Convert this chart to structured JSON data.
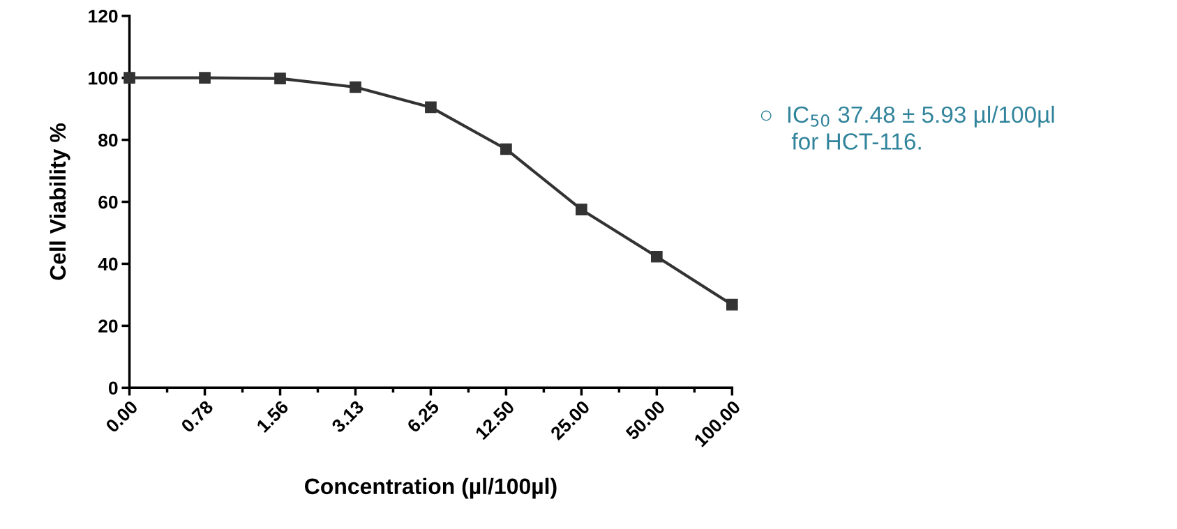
{
  "chart_data": {
    "type": "line",
    "xlabel": "Concentration (µl/100µl)",
    "ylabel": "Cell Viability %",
    "categories": [
      "0.00",
      "0.78",
      "1.56",
      "3.13",
      "6.25",
      "12.50",
      "25.00",
      "50.00",
      "100.00"
    ],
    "series": [
      {
        "color": "#333333",
        "values": [
          100,
          100,
          99.8,
          97,
          90.5,
          77,
          57.5,
          42.3,
          26.8
        ]
      }
    ],
    "ylim": [
      0,
      120
    ],
    "yticks": [
      0,
      20,
      40,
      60,
      80,
      100,
      120
    ],
    "marker": "square",
    "line_style": "solid",
    "grid": false,
    "legend": false,
    "annotations": [
      "○  IC$_{50}$ 37.48 ± 5.93 µl/100µl\n     for HCT-116."
    ]
  }
}
